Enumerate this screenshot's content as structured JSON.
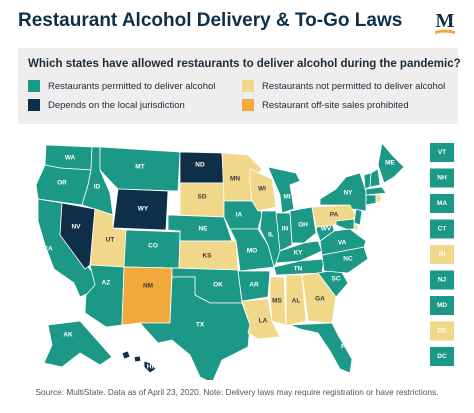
{
  "title": "Restaurant Alcohol Delivery & To-Go Laws",
  "logo_letter": "M",
  "question": "Which states have allowed restaurants to deliver alcohol during the pandemic?",
  "legend": [
    {
      "key": "permitted",
      "label": "Restaurants permitted to deliver alcohol",
      "color": "#1b9886"
    },
    {
      "key": "not_permitted",
      "label": "Restaurants not permitted to deliver alcohol",
      "color": "#f1d78a"
    },
    {
      "key": "local",
      "label": "Depends on the local jurisdiction",
      "color": "#0f2f48"
    },
    {
      "key": "prohibited",
      "label": "Restaurant off-site sales prohibited",
      "color": "#f2a93b"
    }
  ],
  "colors": {
    "permitted": "#1b9886",
    "not_permitted": "#f1d78a",
    "local": "#0f2f48",
    "prohibited": "#f2a93b",
    "border": "#ffffff"
  },
  "states": {
    "WA": "permitted",
    "OR": "permitted",
    "CA": "permitted",
    "NV": "local",
    "ID": "permitted",
    "MT": "permitted",
    "WY": "local",
    "UT": "not_permitted",
    "AZ": "permitted",
    "CO": "permitted",
    "NM": "prohibited",
    "ND": "local",
    "SD": "not_permitted",
    "NE": "permitted",
    "KS": "not_permitted",
    "OK": "permitted",
    "TX": "permitted",
    "MN": "not_permitted",
    "IA": "permitted",
    "MO": "permitted",
    "AR": "permitted",
    "LA": "not_permitted",
    "WI": "not_permitted",
    "IL": "permitted",
    "MI": "permitted",
    "IN": "permitted",
    "OH": "permitted",
    "KY": "permitted",
    "TN": "permitted",
    "MS": "not_permitted",
    "AL": "not_permitted",
    "GA": "not_permitted",
    "FL": "permitted",
    "SC": "permitted",
    "NC": "permitted",
    "VA": "permitted",
    "WV": "permitted",
    "PA": "not_permitted",
    "NY": "permitted",
    "ME": "permitted",
    "AK": "permitted",
    "HI": "local",
    "VT": "permitted",
    "NH": "permitted",
    "MA": "permitted",
    "CT": "permitted",
    "RI": "not_permitted",
    "NJ": "permitted",
    "MD": "permitted",
    "DE": "not_permitted",
    "DC": "permitted"
  },
  "side_boxes": [
    "VT",
    "NH",
    "MA",
    "CT",
    "RI",
    "NJ",
    "MD",
    "DE",
    "DC"
  ],
  "source": "Source: MultiState. Data as of April 23, 2020. Note: Delivery laws may require registration or have restrictions."
}
